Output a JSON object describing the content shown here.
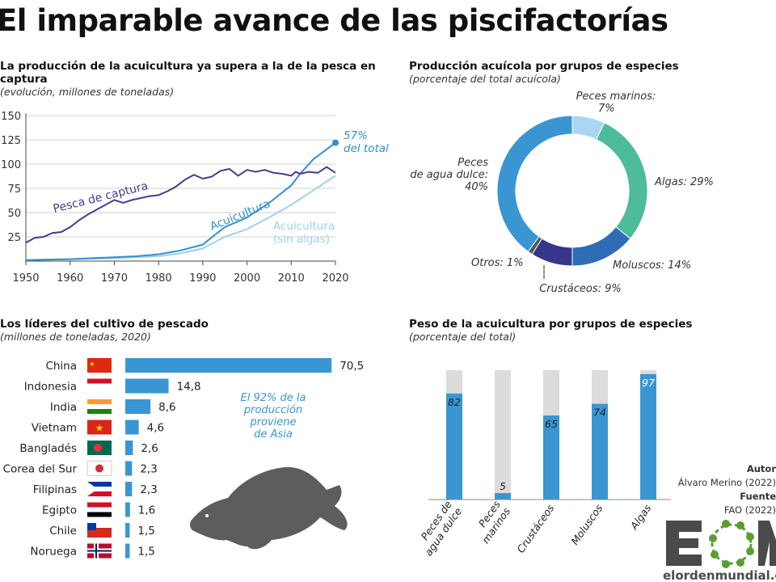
{
  "title": "El imparable avance de las piscifactorías",
  "colors": {
    "capture": "#4a3b8f",
    "aqua": "#2f8fd0",
    "aqua_no_algae": "#9fd0f0",
    "grid": "#d0d0d0",
    "bar": "#3a96d3",
    "bar_bg": "#dcdcdc",
    "logo_gray": "#4a4a4a",
    "logo_green": "#5a9e32"
  },
  "chart_data": [
    {
      "type": "line",
      "title": "La producción de la acuicultura ya supera a la de la pesca en captura",
      "subtitle": "(evolución, millones de toneladas)",
      "xlim": [
        1950,
        2020
      ],
      "ylim": [
        0,
        150
      ],
      "grid": true,
      "xticks": [
        "1950",
        "1960",
        "1970",
        "1980",
        "1990",
        "2000",
        "2010",
        "2020"
      ],
      "yticks": [
        "25",
        "50",
        "75",
        "100",
        "125",
        "150"
      ],
      "annotation": {
        "line1": "57%",
        "line2": "del total"
      },
      "series": [
        {
          "name": "Pesca de captura",
          "x": [
            1950,
            1952,
            1954,
            1956,
            1958,
            1960,
            1962,
            1964,
            1966,
            1968,
            1970,
            1972,
            1974,
            1976,
            1978,
            1980,
            1982,
            1984,
            1986,
            1988,
            1990,
            1992,
            1994,
            1996,
            1998,
            2000,
            2002,
            2004,
            2006,
            2008,
            2010,
            2011,
            2012,
            2014,
            2016,
            2018,
            2020
          ],
          "y": [
            19,
            24,
            25,
            29,
            30,
            35,
            42,
            48,
            53,
            58,
            63,
            60,
            63,
            65,
            67,
            68,
            72,
            77,
            84,
            89,
            85,
            87,
            93,
            95,
            88,
            94,
            92,
            94,
            91,
            90,
            88,
            92,
            90,
            92,
            91,
            97,
            91
          ]
        },
        {
          "name": "Acuicultura",
          "x": [
            1950,
            1960,
            1970,
            1975,
            1980,
            1985,
            1990,
            1993,
            1995,
            2000,
            2005,
            2010,
            2012,
            2015,
            2020
          ],
          "y": [
            1,
            2,
            4,
            5,
            7,
            11,
            17,
            28,
            35,
            45,
            60,
            78,
            90,
            105,
            122
          ]
        },
        {
          "name": "Acuicultura (sin algas)",
          "x": [
            1950,
            1970,
            1980,
            1985,
            1990,
            1995,
            2000,
            2005,
            2010,
            2015,
            2020
          ],
          "y": [
            1,
            3,
            5,
            8,
            13,
            25,
            33,
            45,
            58,
            73,
            88
          ]
        }
      ]
    },
    {
      "type": "pie",
      "title": "Producción acuícola por grupos de especies",
      "subtitle": "(porcentaje del total acuícola)",
      "slices": [
        {
          "label": "Peces marinos:",
          "value": 7,
          "value_label": "7%",
          "color": "#a9d6f2"
        },
        {
          "label": "Algas:",
          "value": 29,
          "value_label": "29%",
          "color": "#4dbb9c"
        },
        {
          "label": "Moluscos:",
          "value": 14,
          "value_label": "14%",
          "color": "#2e6db5"
        },
        {
          "label": "Crustáceos:",
          "value": 9,
          "value_label": "9%",
          "color": "#36368a"
        },
        {
          "label": "Otros:",
          "value": 1,
          "value_label": "1%",
          "color": "#555555"
        },
        {
          "label": "Peces de agua dulce:",
          "value": 40,
          "value_label": "40%",
          "color": "#3a96d3"
        }
      ]
    },
    {
      "type": "bar",
      "title": "Los líderes del cultivo de pescado",
      "subtitle": "(millones de toneladas, 2020)",
      "categories": [
        "China",
        "Indonesia",
        "India",
        "Vietnam",
        "Bangladés",
        "Corea del Sur",
        "Filipinas",
        "Egipto",
        "Chile",
        "Noruega"
      ],
      "values": [
        70.5,
        14.8,
        8.6,
        4.6,
        2.6,
        2.3,
        2.3,
        1.6,
        1.5,
        1.5
      ],
      "value_labels": [
        "70,5",
        "14,8",
        "8,6",
        "4,6",
        "2,6",
        "2,3",
        "2,3",
        "1,6",
        "1,5",
        "1,5"
      ],
      "annotation": [
        "El 92% de la",
        "producción",
        "proviene",
        "de Asia"
      ]
    },
    {
      "type": "bar",
      "title": "Peso de la acuicultura por grupos de especies",
      "subtitle": "(porcentaje del total)",
      "ylim": [
        0,
        100
      ],
      "categories": [
        "Peces de agua dulce",
        "Peces marinos",
        "Crustáceos",
        "Moluscos",
        "Algas"
      ],
      "values": [
        82,
        5,
        65,
        74,
        97
      ]
    }
  ],
  "credits": {
    "author_label": "Autor",
    "author": "Álvaro Merino (2022)",
    "source_label": "Fuente",
    "source": "FAO (2022)"
  },
  "logo": {
    "text": "EOM",
    "url_text": "elordenmundial.com"
  }
}
